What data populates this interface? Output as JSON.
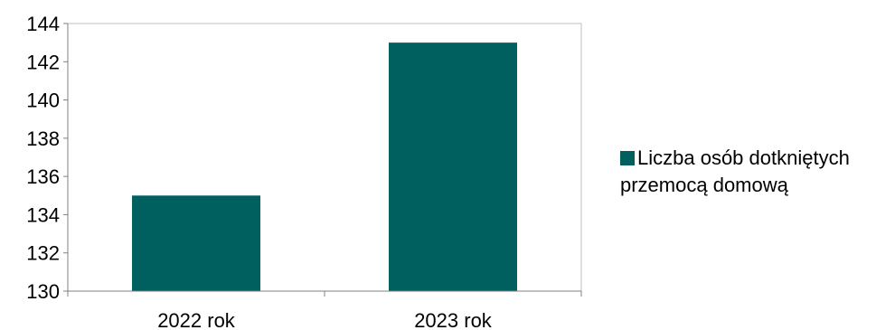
{
  "chart_data": {
    "type": "bar",
    "categories": [
      "2022 rok",
      "2023 rok"
    ],
    "series": [
      {
        "name": "Liczba osób dotkniętych przemocą domową",
        "values": [
          135,
          143
        ],
        "color": "#006060"
      }
    ],
    "ylim": [
      130,
      144
    ],
    "yticks": [
      130,
      132,
      134,
      136,
      138,
      140,
      142,
      144
    ],
    "grid": false,
    "legend_position": "right",
    "title": "",
    "xlabel": "",
    "ylabel": ""
  }
}
